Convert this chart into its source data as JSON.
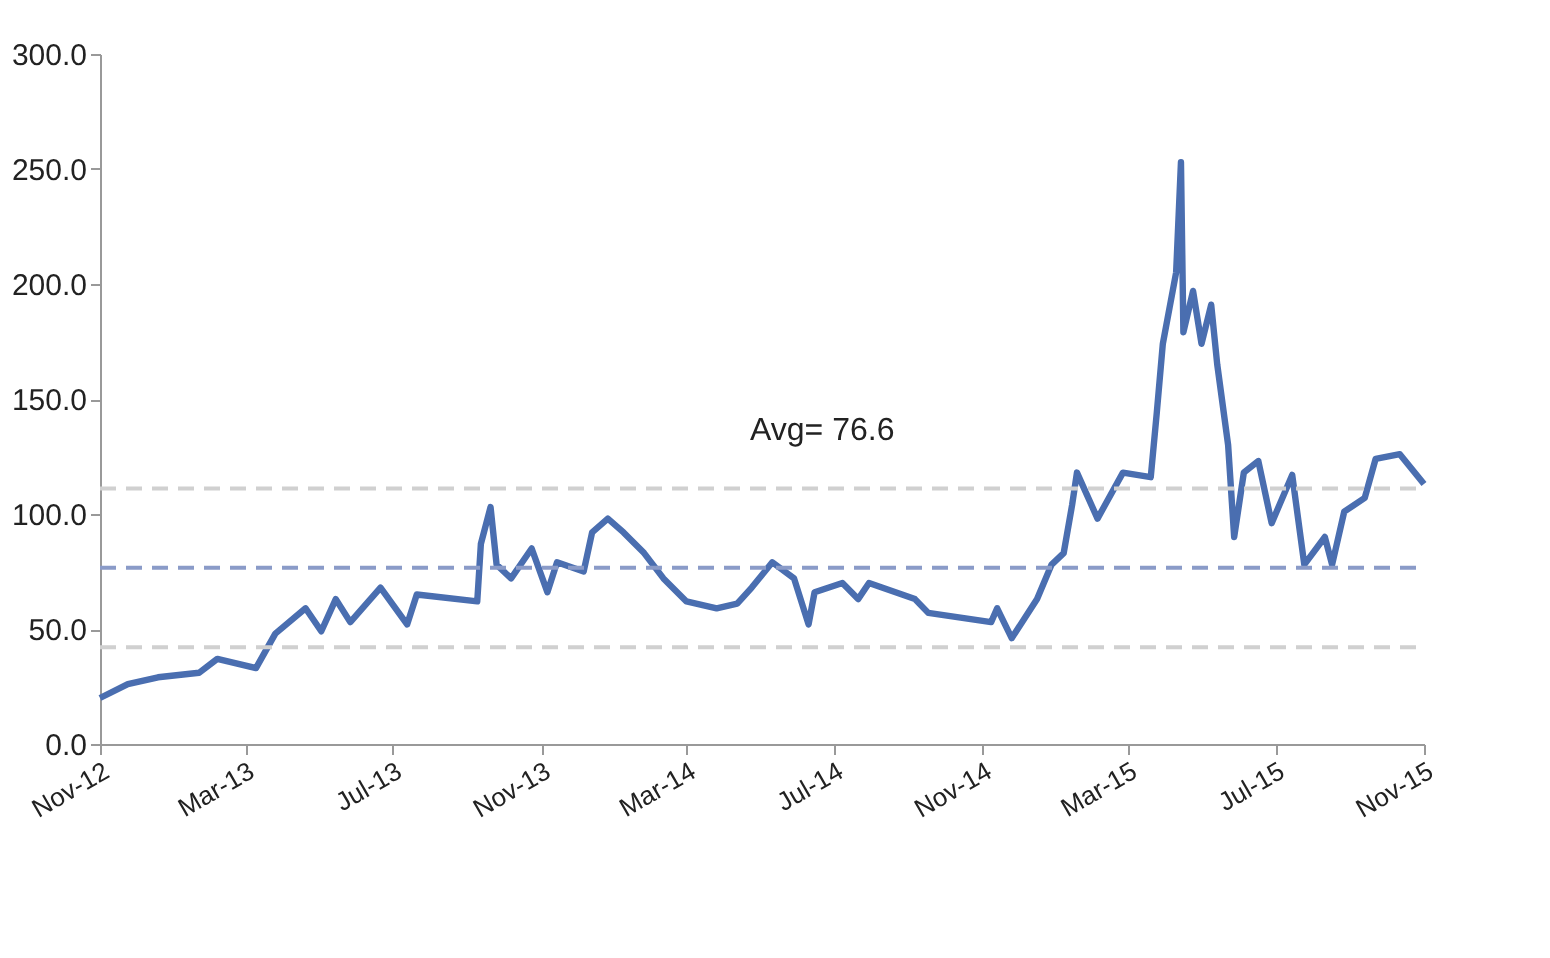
{
  "chart_data": {
    "type": "line",
    "x": [
      "2012-11-01",
      "2012-11-24",
      "2012-12-19",
      "2013-01-22",
      "2013-02-06",
      "2013-03-10",
      "2013-03-26",
      "2013-04-20",
      "2013-05-03",
      "2013-05-15",
      "2013-05-27",
      "2013-06-21",
      "2013-07-13",
      "2013-07-21",
      "2013-09-09",
      "2013-09-12",
      "2013-09-20",
      "2013-09-25",
      "2013-10-07",
      "2013-10-24",
      "2013-11-06",
      "2013-11-14",
      "2013-12-06",
      "2013-12-13",
      "2013-12-26",
      "2014-01-08",
      "2014-01-25",
      "2014-02-10",
      "2014-03-01",
      "2014-03-26",
      "2014-04-12",
      "2014-04-24",
      "2014-05-11",
      "2014-05-29",
      "2014-06-10",
      "2014-06-15",
      "2014-07-08",
      "2014-07-21",
      "2014-07-30",
      "2014-09-06",
      "2014-09-17",
      "2014-11-08",
      "2014-11-13",
      "2014-11-25",
      "2014-12-16",
      "2014-12-28",
      "2015-01-07",
      "2015-01-14",
      "2015-01-18",
      "2015-02-04",
      "2015-02-25",
      "2015-03-20",
      "2015-03-25",
      "2015-03-30",
      "2015-04-10",
      "2015-04-14",
      "2015-04-16",
      "2015-04-24",
      "2015-05-01",
      "2015-05-09",
      "2015-05-14",
      "2015-05-23",
      "2015-05-28",
      "2015-06-05",
      "2015-06-17",
      "2015-06-28",
      "2015-07-15",
      "2015-07-25",
      "2015-08-11",
      "2015-08-17",
      "2015-08-27",
      "2015-09-13",
      "2015-09-22",
      "2015-10-12",
      "2015-11-01"
    ],
    "series": [
      {
        "color": "#4a6eb0",
        "values": [
          20,
          26,
          29,
          31,
          37,
          33,
          48,
          59,
          49,
          63,
          53,
          68,
          52,
          65,
          62,
          87,
          103,
          78,
          72,
          85,
          66,
          79,
          75,
          92,
          98,
          92,
          83,
          72,
          62,
          59,
          61,
          68,
          79,
          72,
          52,
          66,
          70,
          63,
          70,
          63,
          57,
          53,
          59,
          46,
          63,
          78,
          83,
          104,
          118,
          98,
          118,
          116,
          144,
          174,
          205,
          253,
          179,
          197,
          174,
          191,
          165,
          130,
          90,
          118,
          123,
          96,
          117,
          78,
          90,
          78,
          101,
          107,
          124,
          126,
          113
        ]
      }
    ],
    "xlim": [
      "2012-11-01",
      "2015-11-01"
    ],
    "xticks": [
      {
        "value": "2012-11-01",
        "label": "Nov-12"
      },
      {
        "value": "2013-03-01",
        "label": "Mar-13"
      },
      {
        "value": "2013-07-01",
        "label": "Jul-13"
      },
      {
        "value": "2013-11-01",
        "label": "Nov-13"
      },
      {
        "value": "2014-03-01",
        "label": "Mar-14"
      },
      {
        "value": "2014-07-01",
        "label": "Jul-14"
      },
      {
        "value": "2014-11-01",
        "label": "Nov-14"
      },
      {
        "value": "2015-03-01",
        "label": "Mar-15"
      },
      {
        "value": "2015-07-01",
        "label": "Jul-15"
      },
      {
        "value": "2015-11-01",
        "label": "Nov-15"
      }
    ],
    "ylim": [
      0,
      300
    ],
    "yticks": [
      {
        "value": 0,
        "label": "0.0"
      },
      {
        "value": 50,
        "label": "50.0"
      },
      {
        "value": 100,
        "label": "100.0"
      },
      {
        "value": 150,
        "label": "150.0"
      },
      {
        "value": 200,
        "label": "200.0"
      },
      {
        "value": 250,
        "label": "250.0"
      },
      {
        "value": 300,
        "label": "300.0"
      }
    ],
    "ref_lines": [
      {
        "axis": "y",
        "value": 76.6,
        "color": "#8a9bc8",
        "line_style": "dashed"
      },
      {
        "axis": "y",
        "value": 111.1,
        "color": "#d0d0d0",
        "line_style": "dashed"
      },
      {
        "axis": "y",
        "value": 42.1,
        "color": "#d0d0d0",
        "line_style": "dashed"
      }
    ],
    "annotations": [
      "Avg= 76.6"
    ],
    "grid": false,
    "marker": "none",
    "line_style": "solid"
  }
}
